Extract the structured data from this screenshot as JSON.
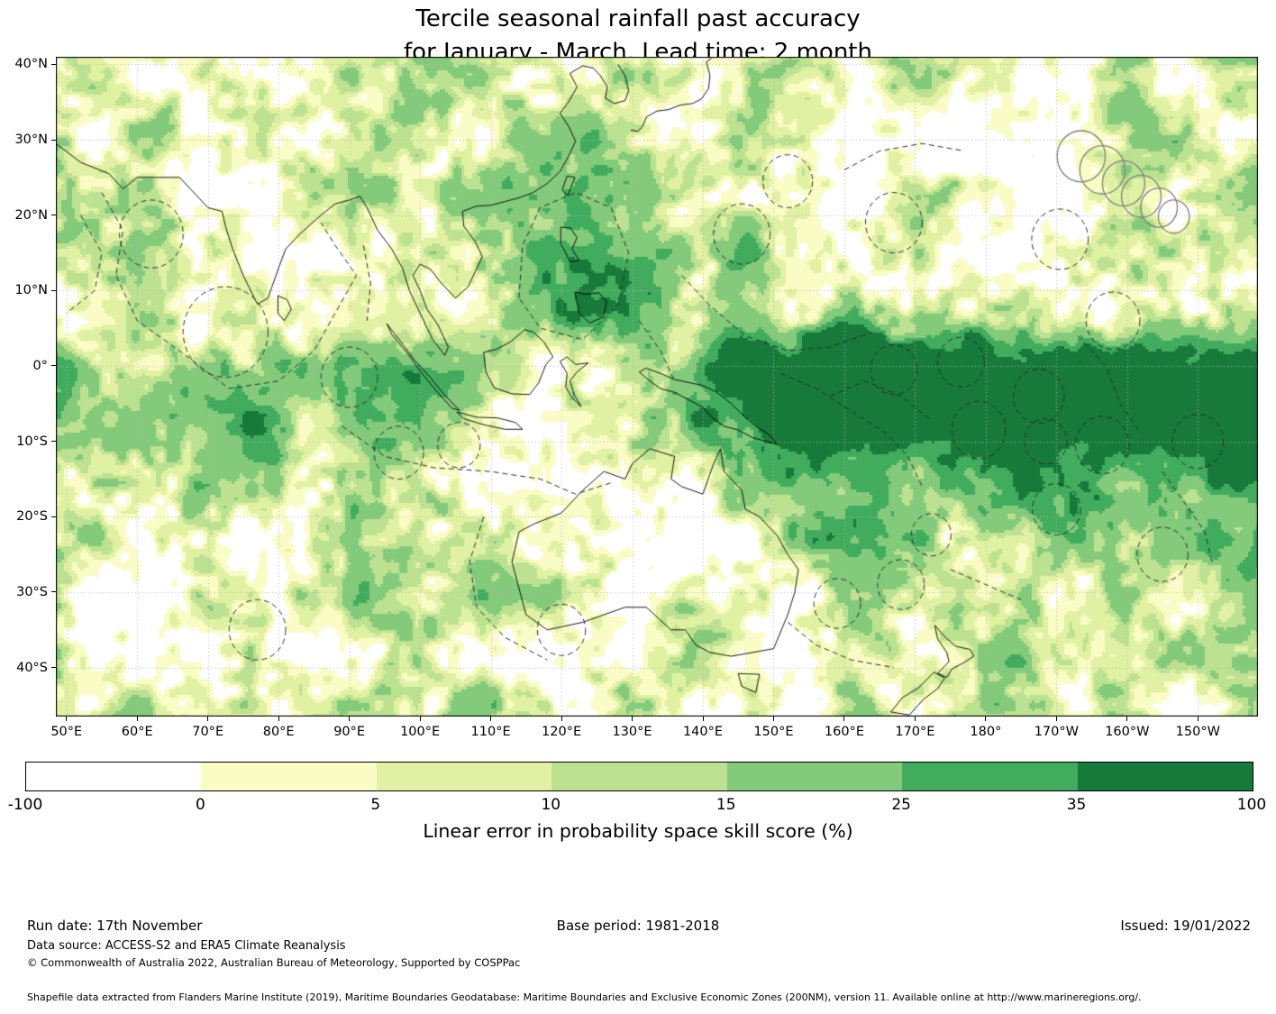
{
  "title": {
    "line1": "Tercile seasonal rainfall past accuracy",
    "line2": "for January - March. Lead time: 2 month"
  },
  "map": {
    "y_tick_labels": [
      "40°N",
      "30°N",
      "20°N",
      "10°N",
      "0°",
      "10°S",
      "20°S",
      "30°S",
      "40°S"
    ],
    "x_tick_labels": [
      "50°E",
      "60°E",
      "70°E",
      "80°E",
      "90°E",
      "100°E",
      "110°E",
      "120°E",
      "130°E",
      "140°E",
      "150°E",
      "160°E",
      "170°E",
      "180°",
      "170°W",
      "160°W",
      "150°W"
    ]
  },
  "colorbar": {
    "tick_labels": [
      "-100",
      "0",
      "5",
      "10",
      "15",
      "25",
      "35",
      "100"
    ],
    "segment_colors": [
      "#ffffff",
      "#f9fcc5",
      "#e1f1a3",
      "#bce291",
      "#84ca7b",
      "#42ac5e",
      "#177a3b"
    ],
    "label": "Linear error in probability space skill score (%)"
  },
  "footer": {
    "run_date": "Run date: 17th November",
    "base_period": "Base period: 1981-2018",
    "issued": "Issued: 19/01/2022",
    "data_source": "Data source: ACCESS-S2 and ERA5 Climate Reanalysis",
    "copyright": "© Commonwealth of Australia 2022, Australian Bureau of Meteorology, Supported by COSPPac",
    "shapefile_note": "Shapefile data extracted from Flanders Marine Institute (2019), Maritime Boundaries Geodatabase: Maritime Boundaries and Exclusive Economic Zones (200NM), version 11. Available online at http://www.marineregions.org/."
  },
  "chart_data": {
    "type": "heatmap",
    "title": "Tercile seasonal rainfall past accuracy for January - March. Lead time: 2 month",
    "variable": "Linear error in probability space skill score (%)",
    "colorbar_levels": [
      -100,
      0,
      5,
      10,
      15,
      25,
      35,
      100
    ],
    "colorbar_colors": [
      "#ffffff",
      "#f9fcc5",
      "#e1f1a3",
      "#bce291",
      "#84ca7b",
      "#42ac5e",
      "#177a3b"
    ],
    "x_axis": {
      "tick_labels": [
        "50°E",
        "60°E",
        "70°E",
        "80°E",
        "90°E",
        "100°E",
        "110°E",
        "120°E",
        "130°E",
        "140°E",
        "150°E",
        "160°E",
        "170°E",
        "180°",
        "170°W",
        "160°W",
        "150°W"
      ],
      "range_deg_east": [
        50,
        210
      ]
    },
    "y_axis": {
      "tick_labels": [
        "40°N",
        "30°N",
        "20°N",
        "10°N",
        "0°",
        "10°S",
        "20°S",
        "30°S",
        "40°S"
      ],
      "range_deg_north": [
        -45,
        40
      ]
    },
    "run_date": "17th November",
    "base_period": "1981-2018",
    "issued": "19/01/2022",
    "notes": "Filled-contour skill map over the Indo-Pacific; highest skill (dark green, >35%) along the equatorial central/western Pacific and South Pacific Convergence Zone; dashed outlines mark EEZ maritime boundaries; gridlines every 10 degrees."
  }
}
